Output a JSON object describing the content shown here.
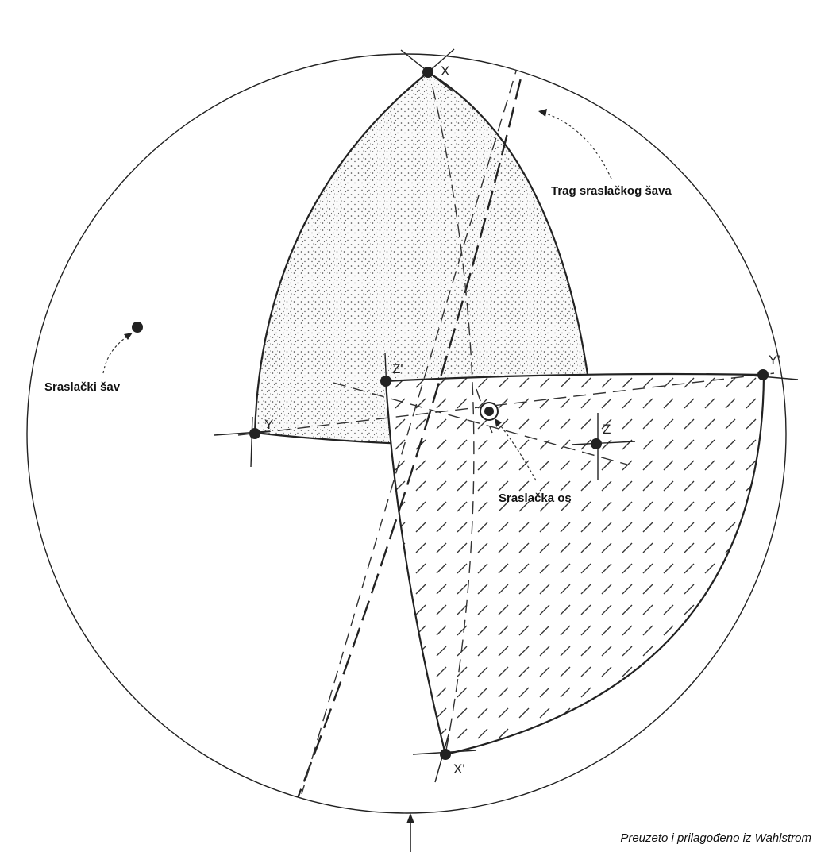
{
  "points": {
    "x": "X",
    "y": "Y",
    "z": "Z",
    "x_prime": "X'",
    "y_prime": "Y'",
    "z_prime": "Z'"
  },
  "callouts": {
    "twin_plane": "Sraslački šav",
    "twin_plane_trace": "Trag sraslačkog šava",
    "twin_axis": "Sraslačka os"
  },
  "credit": "Preuzeto i prilagođeno iz Wahlstrom",
  "colors": {
    "ink": "#222222",
    "background": "#ffffff"
  }
}
